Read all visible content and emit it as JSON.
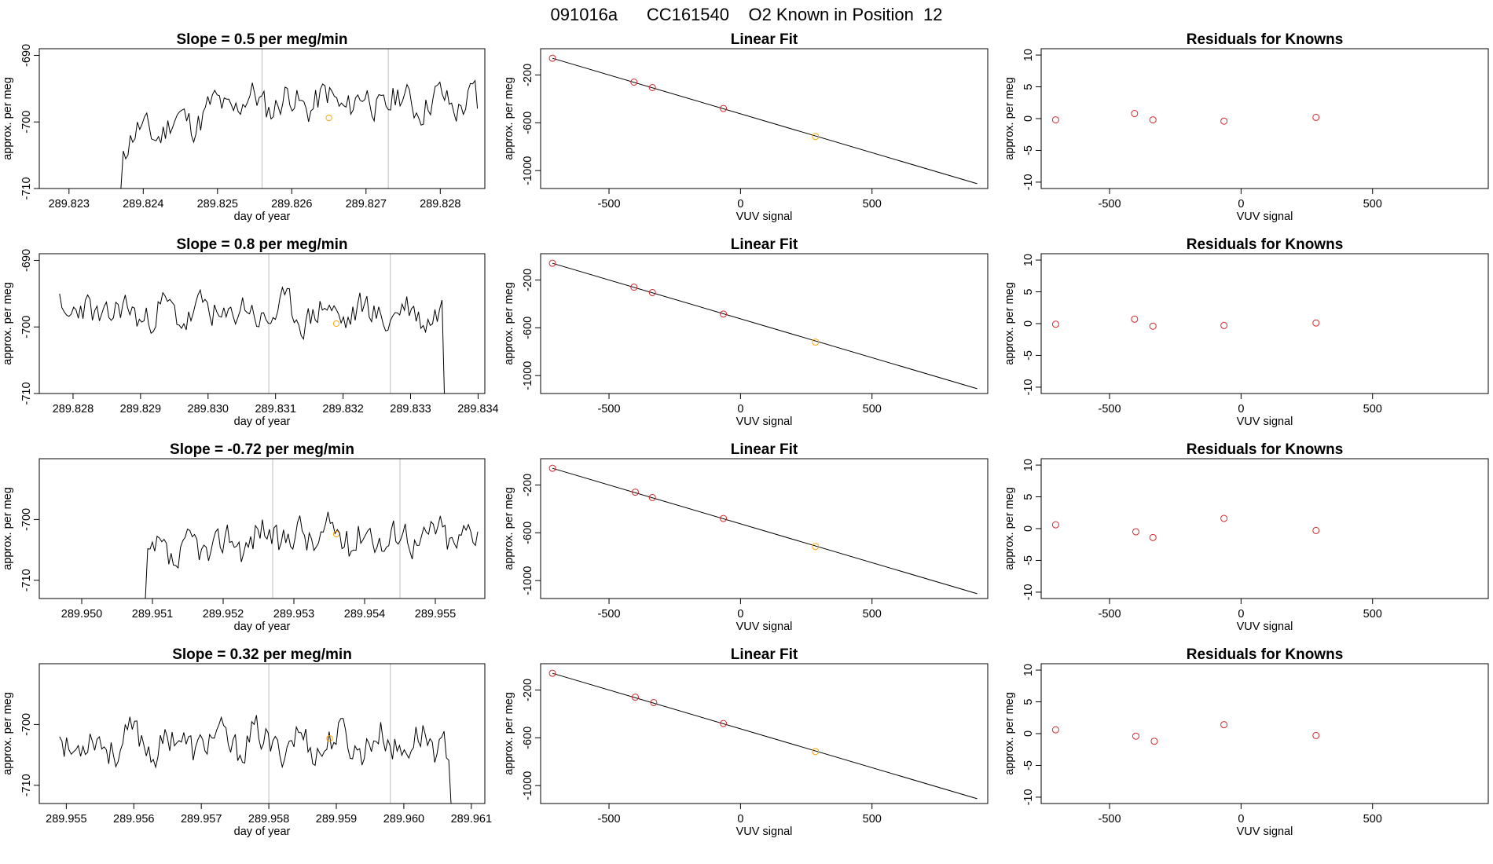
{
  "figure": {
    "suptitle": "091016a      CC161540    O2 Known in Position  12"
  },
  "colors": {
    "line": "#000000",
    "vline": "#bebebe",
    "known": "#d62728",
    "orange": "#ffa500"
  },
  "chart_data": [
    {
      "type": "line",
      "title": "Slope =  0.5  per meg/min",
      "xlabel": "day of year",
      "ylabel": "approx. per meg",
      "xticks": [
        "289.823",
        "289.824",
        "289.825",
        "289.826",
        "289.827",
        "289.828"
      ],
      "xtick_values": [
        289.823,
        289.824,
        289.825,
        289.826,
        289.827,
        289.828
      ],
      "yticks": [
        "-690",
        "-700",
        "-710"
      ],
      "ytick_values": [
        -690,
        -700,
        -710
      ],
      "xlim": [
        289.8226,
        289.8286
      ],
      "ylim": [
        -710,
        -689
      ],
      "vlines": [
        289.8256,
        289.8273
      ],
      "orange_point": [
        289.8265,
        -699.4
      ],
      "series": [
        {
          "name": "signal",
          "x_start": 289.8237,
          "x_end": 289.8285,
          "y_start": -710,
          "y_end": -698,
          "baseline": -700,
          "rise": 6,
          "amp": 2.2,
          "seed": 11
        }
      ]
    },
    {
      "type": "scatter",
      "title": "Linear Fit",
      "xlabel": "VUV signal",
      "ylabel": "approx. per meg",
      "xticks": [
        "-500",
        "0",
        "500"
      ],
      "xtick_values": [
        -500,
        0,
        500
      ],
      "yticks": [
        "-200",
        "-600",
        "-1000"
      ],
      "ytick_values": [
        -200,
        -600,
        -1000
      ],
      "xlim": [
        -760,
        940
      ],
      "ylim": [
        -1150,
        20
      ],
      "line": {
        "x": [
          -715,
          900
        ],
        "y": [
          -60,
          -1110
        ]
      },
      "points": [
        [
          -715,
          -60
        ],
        [
          -405,
          -260
        ],
        [
          -335,
          -305
        ],
        [
          -65,
          -480
        ],
        [
          285,
          -715
        ]
      ],
      "orange_index": 4
    },
    {
      "type": "scatter",
      "title": "Residuals for Knowns",
      "xlabel": "VUV signal",
      "ylabel": "approx. per meg",
      "xticks": [
        "-500",
        "0",
        "500"
      ],
      "xtick_values": [
        -500,
        0,
        500
      ],
      "yticks": [
        "10",
        "5",
        "0",
        "-5",
        "-10"
      ],
      "ytick_values": [
        10,
        5,
        0,
        -5,
        -10
      ],
      "xlim": [
        -760,
        940
      ],
      "ylim": [
        -11,
        11
      ],
      "points": [
        [
          -705,
          -0.2
        ],
        [
          -405,
          0.8
        ],
        [
          -335,
          -0.2
        ],
        [
          -65,
          -0.4
        ],
        [
          285,
          0.2
        ]
      ]
    },
    {
      "type": "line",
      "title": "Slope =  0.8  per meg/min",
      "xlabel": "day of year",
      "ylabel": "approx. per meg",
      "xticks": [
        "289.828",
        "289.829",
        "289.830",
        "289.831",
        "289.832",
        "289.833",
        "289.834"
      ],
      "xtick_values": [
        289.828,
        289.829,
        289.83,
        289.831,
        289.832,
        289.833,
        289.834
      ],
      "yticks": [
        "-690",
        "-700",
        "-710"
      ],
      "ytick_values": [
        -690,
        -700,
        -710
      ],
      "xlim": [
        289.8275,
        289.8341
      ],
      "ylim": [
        -710,
        -689
      ],
      "vlines": [
        289.8309,
        289.8327
      ],
      "orange_point": [
        289.8319,
        -699.5
      ],
      "series": [
        {
          "name": "signal",
          "x_start": 289.8278,
          "x_end": 289.8335,
          "y_start": -695,
          "y_end": -710,
          "baseline": -698,
          "rise": 0,
          "amp": 2.2,
          "seed": 23
        }
      ]
    },
    {
      "type": "scatter",
      "title": "Linear Fit",
      "xlabel": "VUV signal",
      "ylabel": "approx. per meg",
      "xticks": [
        "-500",
        "0",
        "500"
      ],
      "xtick_values": [
        -500,
        0,
        500
      ],
      "yticks": [
        "-200",
        "-600",
        "-1000"
      ],
      "ytick_values": [
        -200,
        -600,
        -1000
      ],
      "xlim": [
        -760,
        940
      ],
      "ylim": [
        -1150,
        20
      ],
      "line": {
        "x": [
          -715,
          900
        ],
        "y": [
          -60,
          -1110
        ]
      },
      "points": [
        [
          -715,
          -60
        ],
        [
          -405,
          -260
        ],
        [
          -335,
          -305
        ],
        [
          -65,
          -485
        ],
        [
          285,
          -720
        ]
      ],
      "orange_index": 4
    },
    {
      "type": "scatter",
      "title": "Residuals for Knowns",
      "xlabel": "VUV signal",
      "ylabel": "approx. per meg",
      "xticks": [
        "-500",
        "0",
        "500"
      ],
      "xtick_values": [
        -500,
        0,
        500
      ],
      "yticks": [
        "10",
        "5",
        "0",
        "-5",
        "-10"
      ],
      "ytick_values": [
        10,
        5,
        0,
        -5,
        -10
      ],
      "xlim": [
        -760,
        940
      ],
      "ylim": [
        -11,
        11
      ],
      "points": [
        [
          -705,
          -0.1
        ],
        [
          -405,
          0.7
        ],
        [
          -335,
          -0.4
        ],
        [
          -65,
          -0.3
        ],
        [
          285,
          0.1
        ]
      ]
    },
    {
      "type": "line",
      "title": "Slope =  -0.72  per meg/min",
      "xlabel": "day of year",
      "ylabel": "approx. per meg",
      "xticks": [
        "289.950",
        "289.951",
        "289.952",
        "289.953",
        "289.954",
        "289.955"
      ],
      "xtick_values": [
        289.95,
        289.951,
        289.952,
        289.953,
        289.954,
        289.955
      ],
      "yticks": [
        "-700",
        "-710"
      ],
      "ytick_values": [
        -700,
        -710
      ],
      "xlim": [
        289.9494,
        289.9557
      ],
      "ylim": [
        -713,
        -690
      ],
      "vlines": [
        289.9527,
        289.9545
      ],
      "orange_point": [
        289.9536,
        -702.4
      ],
      "series": [
        {
          "name": "signal",
          "x_start": 289.9509,
          "x_end": 289.9556,
          "y_start": -713,
          "y_end": -702,
          "baseline": -705,
          "rise": 4.5,
          "amp": 2.6,
          "seed": 37
        }
      ]
    },
    {
      "type": "scatter",
      "title": "Linear Fit",
      "xlabel": "VUV signal",
      "ylabel": "approx. per meg",
      "xticks": [
        "-500",
        "0",
        "500"
      ],
      "xtick_values": [
        -500,
        0,
        500
      ],
      "yticks": [
        "-200",
        "-600",
        "-1000"
      ],
      "ytick_values": [
        -200,
        -600,
        -1000
      ],
      "xlim": [
        -760,
        940
      ],
      "ylim": [
        -1150,
        20
      ],
      "line": {
        "x": [
          -715,
          900
        ],
        "y": [
          -60,
          -1110
        ]
      },
      "points": [
        [
          -715,
          -60
        ],
        [
          -400,
          -260
        ],
        [
          -335,
          -305
        ],
        [
          -65,
          -480
        ],
        [
          285,
          -715
        ]
      ],
      "orange_index": 4
    },
    {
      "type": "scatter",
      "title": "Residuals for Knowns",
      "xlabel": "VUV signal",
      "ylabel": "approx. per meg",
      "xticks": [
        "-500",
        "0",
        "500"
      ],
      "xtick_values": [
        -500,
        0,
        500
      ],
      "yticks": [
        "10",
        "5",
        "0",
        "-5",
        "-10"
      ],
      "ytick_values": [
        10,
        5,
        0,
        -5,
        -10
      ],
      "xlim": [
        -760,
        940
      ],
      "ylim": [
        -11,
        11
      ],
      "points": [
        [
          -705,
          0.6
        ],
        [
          -400,
          -0.5
        ],
        [
          -335,
          -1.4
        ],
        [
          -65,
          1.6
        ],
        [
          285,
          -0.3
        ]
      ]
    },
    {
      "type": "line",
      "title": "Slope =  0.32  per meg/min",
      "xlabel": "day of year",
      "ylabel": "approx. per meg",
      "xticks": [
        "289.955",
        "289.956",
        "289.957",
        "289.958",
        "289.959",
        "289.960",
        "289.961"
      ],
      "xtick_values": [
        289.955,
        289.956,
        289.957,
        289.958,
        289.959,
        289.96,
        289.961
      ],
      "yticks": [
        "-700",
        "-710"
      ],
      "ytick_values": [
        -700,
        -710
      ],
      "xlim": [
        289.9546,
        289.9612
      ],
      "ylim": [
        -713,
        -690
      ],
      "vlines": [
        289.958,
        289.9598
      ],
      "orange_point": [
        289.9589,
        -702.3
      ],
      "series": [
        {
          "name": "signal",
          "x_start": 289.9549,
          "x_end": 289.9607,
          "y_start": -702,
          "y_end": -713,
          "baseline": -703,
          "rise": 0,
          "amp": 2.6,
          "seed": 53
        }
      ]
    },
    {
      "type": "scatter",
      "title": "Linear Fit",
      "xlabel": "VUV signal",
      "ylabel": "approx. per meg",
      "xticks": [
        "-500",
        "0",
        "500"
      ],
      "xtick_values": [
        -500,
        0,
        500
      ],
      "yticks": [
        "-200",
        "-600",
        "-1000"
      ],
      "ytick_values": [
        -200,
        -600,
        -1000
      ],
      "xlim": [
        -760,
        940
      ],
      "ylim": [
        -1150,
        20
      ],
      "line": {
        "x": [
          -715,
          900
        ],
        "y": [
          -60,
          -1110
        ]
      },
      "points": [
        [
          -715,
          -60
        ],
        [
          -400,
          -260
        ],
        [
          -330,
          -305
        ],
        [
          -65,
          -480
        ],
        [
          285,
          -715
        ]
      ],
      "orange_index": 4
    },
    {
      "type": "scatter",
      "title": "Residuals for Knowns",
      "xlabel": "VUV signal",
      "ylabel": "approx. per meg",
      "xticks": [
        "-500",
        "0",
        "500"
      ],
      "xtick_values": [
        -500,
        0,
        500
      ],
      "yticks": [
        "10",
        "5",
        "0",
        "-5",
        "-10"
      ],
      "ytick_values": [
        10,
        5,
        0,
        -5,
        -10
      ],
      "xlim": [
        -760,
        940
      ],
      "ylim": [
        -11,
        11
      ],
      "points": [
        [
          -705,
          0.6
        ],
        [
          -400,
          -0.4
        ],
        [
          -330,
          -1.2
        ],
        [
          -65,
          1.4
        ],
        [
          285,
          -0.3
        ]
      ]
    }
  ]
}
